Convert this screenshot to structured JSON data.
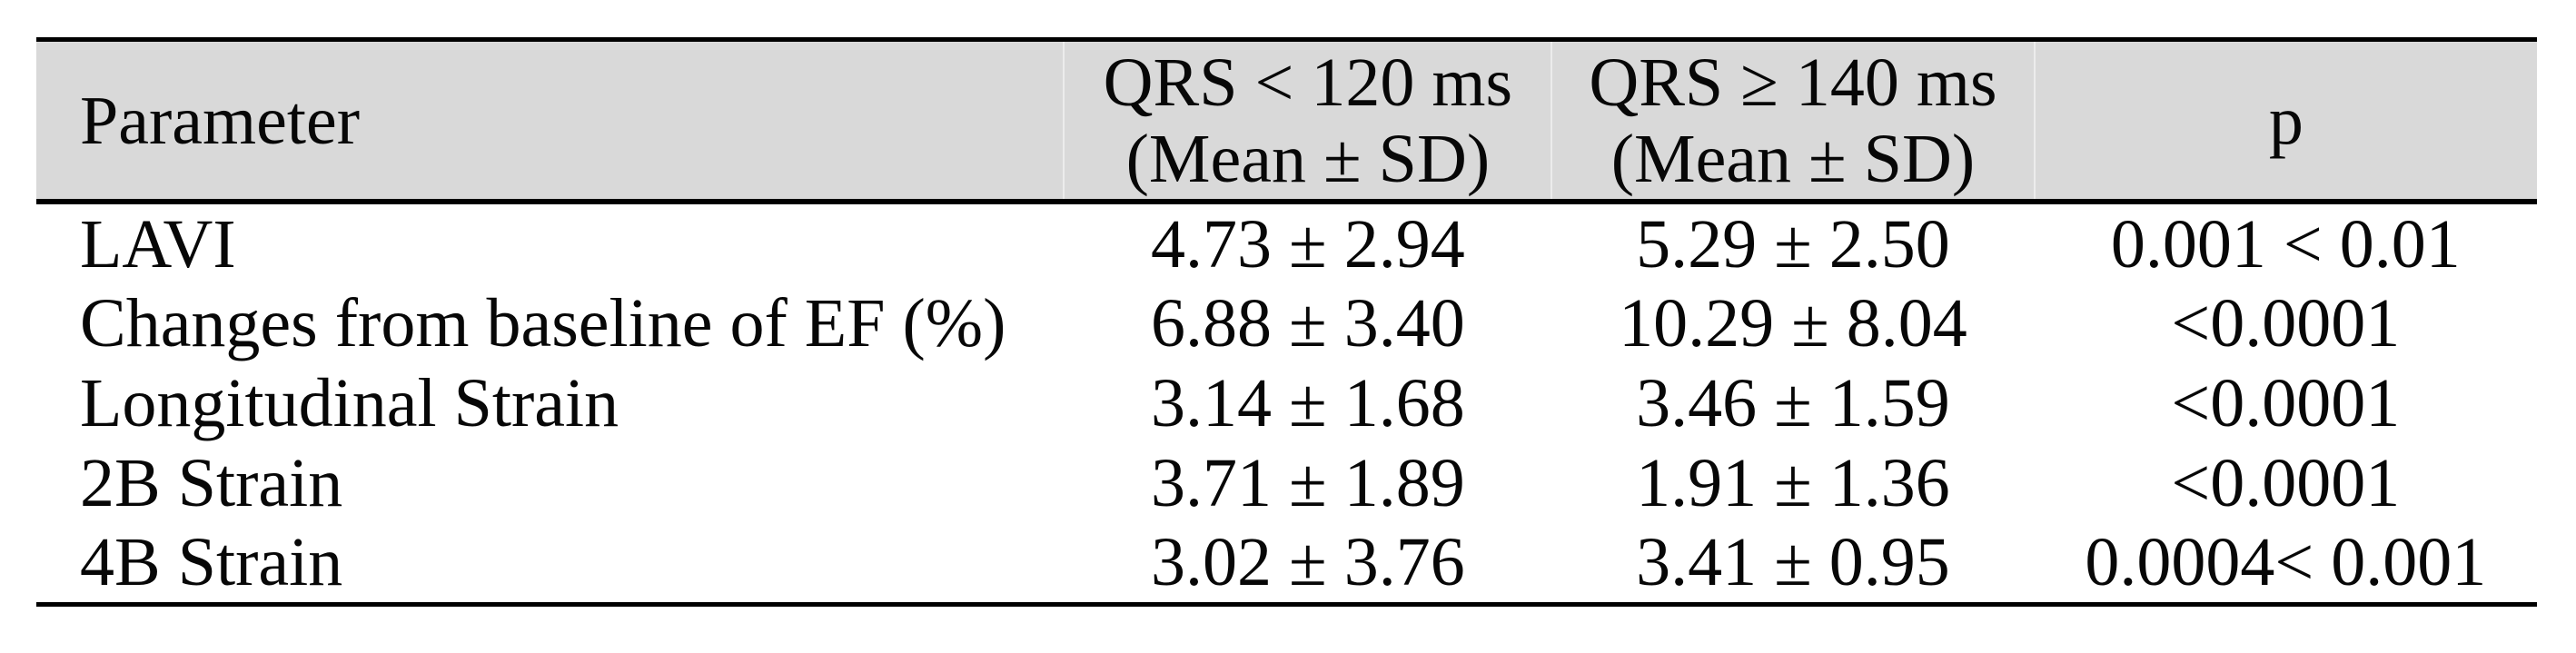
{
  "table": {
    "header": {
      "parameter": "Parameter",
      "qrs_lt_120_line1": "QRS < 120 ms",
      "qrs_lt_120_line2": "(Mean ± SD)",
      "qrs_ge_140_line1": "QRS ≥ 140 ms",
      "qrs_ge_140_line2": "(Mean ± SD)",
      "p": "p"
    },
    "rows": [
      {
        "parameter": "LAVI",
        "qrs_lt_120": "4.73 ± 2.94",
        "qrs_ge_140": "5.29 ± 2.50",
        "p": "0.001 < 0.01"
      },
      {
        "parameter": "Changes from baseline of EF (%)",
        "qrs_lt_120": "6.88 ± 3.40",
        "qrs_ge_140": "10.29 ± 8.04",
        "p": "<0.0001"
      },
      {
        "parameter": "Longitudinal Strain",
        "qrs_lt_120": "3.14 ± 1.68",
        "qrs_ge_140": "3.46 ± 1.59",
        "p": "<0.0001"
      },
      {
        "parameter": "2B Strain",
        "qrs_lt_120": "3.71 ± 1.89",
        "qrs_ge_140": "1.91 ± 1.36",
        "p": "<0.0001"
      },
      {
        "parameter": "4B Strain",
        "qrs_lt_120": "3.02 ± 3.76",
        "qrs_ge_140": "3.41 ± 0.95",
        "p": "0.0004< 0.001"
      }
    ]
  },
  "colors": {
    "header_bg": "#d9d9d9",
    "rule": "#000000",
    "text": "#070707",
    "header_cell_separator": "#ececec",
    "page_bg": "#ffffff"
  }
}
